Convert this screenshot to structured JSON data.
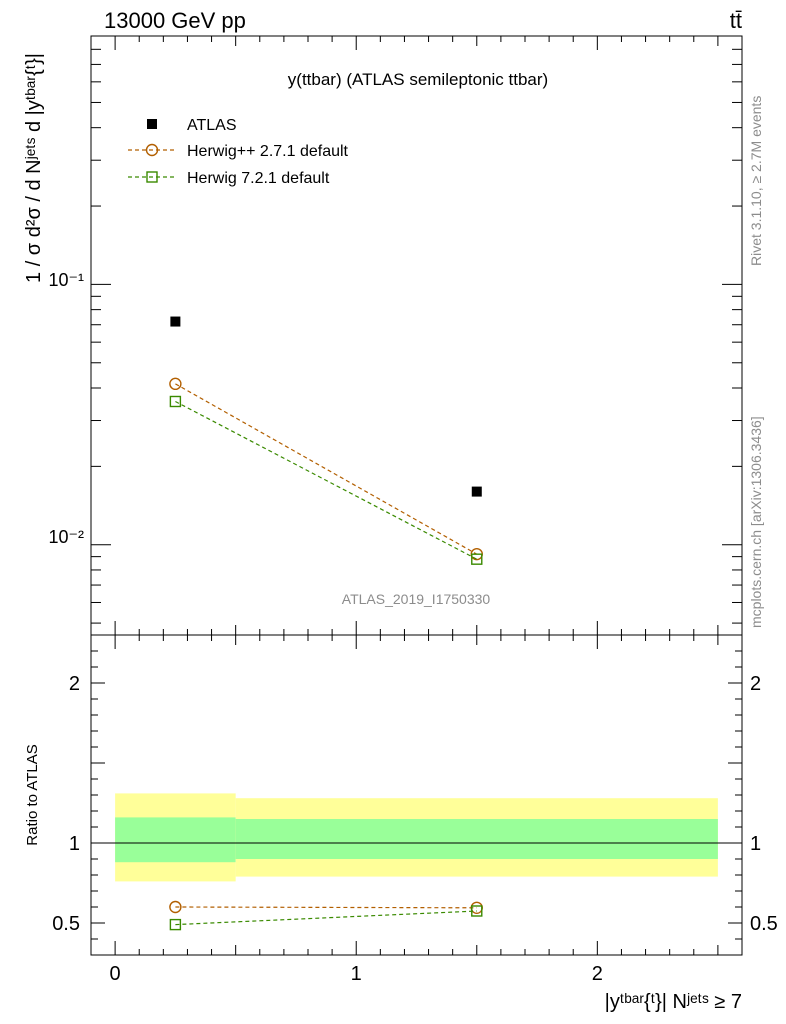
{
  "header": {
    "left_label": "13000 GeV pp",
    "right_label": "tt̄"
  },
  "side_labels": {
    "rivet": "Rivet 3.1.10, ≥ 2.7M events",
    "source": "mcplots.cern.ch [arXiv:1306.3436]"
  },
  "watermark": "ATLAS_2019_I1750330",
  "chart_data": [
    {
      "type": "scatter",
      "panel": "main",
      "title": "y(ttbar) (ATLAS semileptonic ttbar)",
      "ylabel": "1 / σ d²σ / d Nʲᵉᵗˢ d |yᵗᵇᵃʳ{ᵗ}|",
      "yscale": "log",
      "xlim": [
        -0.1,
        2.6
      ],
      "ylim": [
        0.0045,
        0.9
      ],
      "ytick_labels": [
        "10⁻¹",
        "10⁻²"
      ],
      "legend_position": "top-left",
      "x": [
        0.25,
        1.5
      ],
      "series": [
        {
          "name": "ATLAS",
          "marker": "filled-square",
          "color": "#000000",
          "values": [
            0.072,
            0.016
          ]
        },
        {
          "name": "Herwig++ 2.7.1 default",
          "marker": "open-circle",
          "line": "dashed",
          "color": "#b25f00",
          "values": [
            0.0415,
            0.0092
          ]
        },
        {
          "name": "Herwig 7.2.1 default",
          "marker": "open-square",
          "line": "dashed",
          "color": "#3a8a00",
          "values": [
            0.0355,
            0.0088
          ]
        }
      ]
    },
    {
      "type": "line",
      "panel": "ratio",
      "ylabel": "Ratio to ATLAS",
      "xlabel": "|yᵗᵇᵃʳ{ᵗ}| Nʲᵉᵗˢ ≥ 7",
      "xlim": [
        -0.1,
        2.6
      ],
      "ylim": [
        0.3,
        2.3
      ],
      "xtick_labels": [
        "0",
        "1",
        "2"
      ],
      "ytick_labels": [
        "0.5",
        "1",
        "2"
      ],
      "bands": [
        {
          "x0": 0.0,
          "x1": 0.5,
          "yellow": [
            0.76,
            1.31
          ],
          "green": [
            0.88,
            1.16
          ]
        },
        {
          "x0": 0.5,
          "x1": 2.5,
          "yellow": [
            0.79,
            1.28
          ],
          "green": [
            0.9,
            1.15
          ]
        }
      ],
      "x": [
        0.25,
        1.5
      ],
      "series": [
        {
          "name": "Herwig++ 2.7.1 default",
          "marker": "open-circle",
          "color": "#b25f00",
          "values": [
            0.6,
            0.595
          ]
        },
        {
          "name": "Herwig 7.2.1 default",
          "marker": "open-square",
          "color": "#3a8a00",
          "values": [
            0.49,
            0.575
          ]
        }
      ],
      "colors": {
        "band_yellow": "#ffff99",
        "band_green": "#99ff99"
      }
    }
  ]
}
